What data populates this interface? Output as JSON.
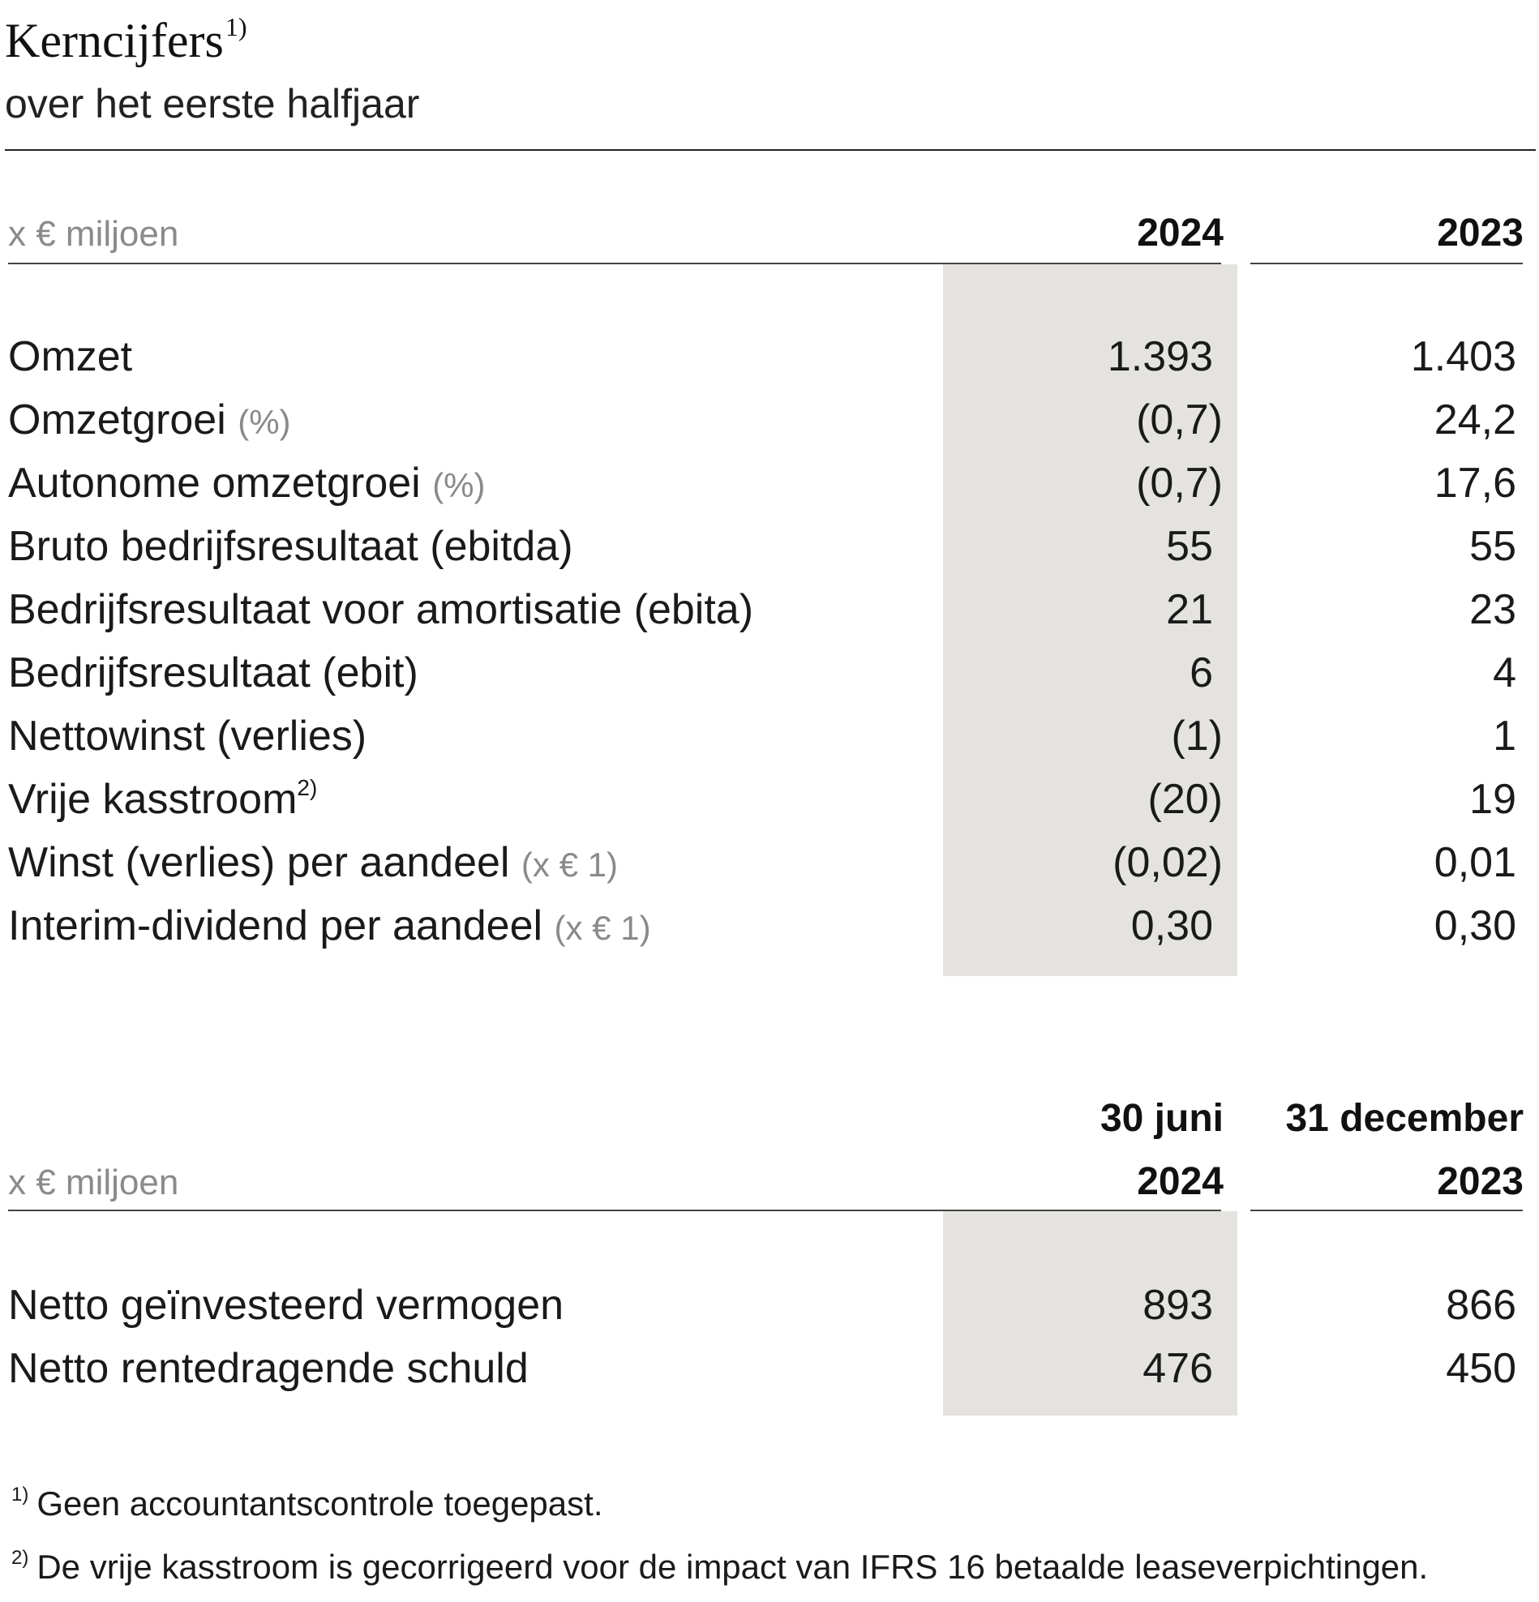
{
  "title": "Kerncijfers",
  "title_note": "1)",
  "subtitle": "over het eerste halfjaar",
  "table1": {
    "unit": "x € miljoen",
    "col1": "2024",
    "col2": "2023",
    "rows": [
      {
        "label": "Omzet",
        "suffix": "",
        "note": "",
        "v1": "1.393",
        "v2": "1.403"
      },
      {
        "label": "Omzetgroei",
        "suffix": "(%)",
        "note": "",
        "v1": "(0,7)",
        "v2": "24,2"
      },
      {
        "label": "Autonome omzetgroei",
        "suffix": "(%)",
        "note": "",
        "v1": "(0,7)",
        "v2": "17,6"
      },
      {
        "label": "Bruto bedrijfsresultaat (ebitda)",
        "suffix": "",
        "note": "",
        "v1": "55",
        "v2": "55"
      },
      {
        "label": "Bedrijfsresultaat voor amortisatie (ebita)",
        "suffix": "",
        "note": "",
        "v1": "21",
        "v2": "23"
      },
      {
        "label": "Bedrijfsresultaat (ebit)",
        "suffix": "",
        "note": "",
        "v1": "6",
        "v2": "4"
      },
      {
        "label": "Nettowinst (verlies)",
        "suffix": "",
        "note": "",
        "v1": "(1)",
        "v2": "1"
      },
      {
        "label": "Vrije kasstroom",
        "suffix": "",
        "note": "2)",
        "v1": "(20)",
        "v2": "19"
      },
      {
        "label": "Winst (verlies) per aandeel",
        "suffix": "(x € 1)",
        "note": "",
        "v1": "(0,02)",
        "v2": "0,01"
      },
      {
        "label": "Interim-dividend per aandeel",
        "suffix": "(x € 1)",
        "note": "",
        "v1": "0,30",
        "v2": "0,30"
      }
    ]
  },
  "table2": {
    "unit": "x € miljoen",
    "col1_line1": "30 juni",
    "col1_line2": "2024",
    "col2_line1": "31 december",
    "col2_line2": "2023",
    "rows": [
      {
        "label": "Netto geïnvesteerd vermogen",
        "v1": "893",
        "v2": "866"
      },
      {
        "label": "Netto rentedragende schuld",
        "v1": "476",
        "v2": "450"
      }
    ]
  },
  "footnotes": [
    {
      "mark": "1)",
      "text": "Geen accountantscontrole toegepast."
    },
    {
      "mark": "2)",
      "text": "De vrije kasstroom is gecorrigeerd voor de impact van IFRS 16 betaalde leaseverpichtingen."
    }
  ]
}
